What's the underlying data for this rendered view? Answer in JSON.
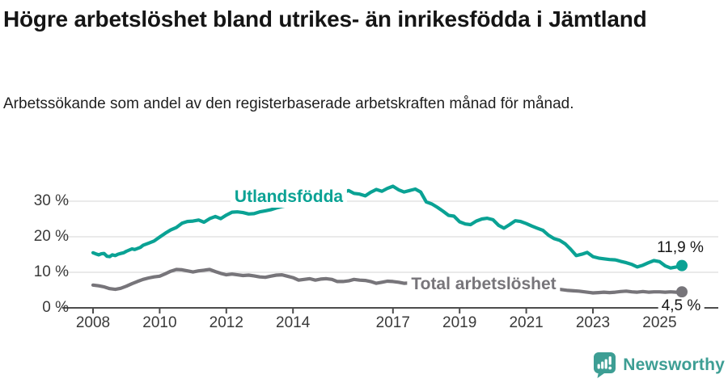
{
  "chart_data": {
    "type": "line",
    "title": "Högre arbetslöshet bland utrikes- än inrikesfödda i Jämtland",
    "subtitle": "Arbetssökande som andel av den registerbaserade arbetskraften månad för månad.",
    "xlim": [
      2008,
      2025.67
    ],
    "ylim": [
      0,
      35
    ],
    "grid": true,
    "legend_position": "inline-labels-on-lines",
    "x_ticks": {
      "years": [
        2008,
        2010,
        2012,
        2014,
        2017,
        2019,
        2021,
        2023,
        2025
      ],
      "labels": [
        "2008",
        "2010",
        "2012",
        "2014",
        "2017",
        "2019",
        "2021",
        "2023",
        "2025"
      ]
    },
    "y_ticks": {
      "values": [
        0,
        10,
        20,
        30
      ],
      "labels": [
        "0 %",
        "10 %",
        "20 %",
        "30 %"
      ]
    },
    "axis_color": "#4d4d4d",
    "gridline_color": "#dedede",
    "series": [
      {
        "name": "Utlandsfödda",
        "color": "#0aa294",
        "end_label": "11,9 %",
        "end_value": 11.9,
        "points": [
          [
            2008.0,
            15.5
          ],
          [
            2008.08,
            15.2
          ],
          [
            2008.17,
            14.9
          ],
          [
            2008.25,
            15.2
          ],
          [
            2008.33,
            15.3
          ],
          [
            2008.42,
            14.5
          ],
          [
            2008.5,
            14.4
          ],
          [
            2008.58,
            14.9
          ],
          [
            2008.67,
            14.7
          ],
          [
            2008.75,
            15.1
          ],
          [
            2008.83,
            15.3
          ],
          [
            2008.92,
            15.5
          ],
          [
            2009.0,
            15.9
          ],
          [
            2009.17,
            16.6
          ],
          [
            2009.25,
            16.4
          ],
          [
            2009.42,
            17.0
          ],
          [
            2009.5,
            17.6
          ],
          [
            2009.67,
            18.2
          ],
          [
            2009.83,
            18.8
          ],
          [
            2010.0,
            19.9
          ],
          [
            2010.17,
            21.0
          ],
          [
            2010.33,
            21.9
          ],
          [
            2010.5,
            22.6
          ],
          [
            2010.67,
            23.8
          ],
          [
            2010.83,
            24.3
          ],
          [
            2011.0,
            24.4
          ],
          [
            2011.17,
            24.7
          ],
          [
            2011.33,
            24.1
          ],
          [
            2011.5,
            25.1
          ],
          [
            2011.67,
            25.7
          ],
          [
            2011.83,
            25.1
          ],
          [
            2012.0,
            26.1
          ],
          [
            2012.17,
            26.9
          ],
          [
            2012.33,
            27.0
          ],
          [
            2012.5,
            26.8
          ],
          [
            2012.67,
            26.4
          ],
          [
            2012.83,
            26.5
          ],
          [
            2013.0,
            27.0
          ],
          [
            2013.17,
            27.3
          ],
          [
            2013.33,
            27.6
          ],
          [
            2013.5,
            28.1
          ],
          [
            2013.67,
            28.5
          ],
          [
            2013.83,
            28.8
          ],
          [
            2014.0,
            29.3
          ],
          [
            2014.17,
            29.7
          ],
          [
            2014.33,
            30.1
          ],
          [
            2014.5,
            30.5
          ],
          [
            2014.67,
            30.9
          ],
          [
            2014.83,
            31.2
          ],
          [
            2015.0,
            31.5
          ],
          [
            2015.17,
            31.9
          ],
          [
            2015.33,
            32.1
          ],
          [
            2015.5,
            32.4
          ],
          [
            2015.67,
            33.0
          ],
          [
            2015.83,
            32.2
          ],
          [
            2016.0,
            32.0
          ],
          [
            2016.17,
            31.5
          ],
          [
            2016.33,
            32.5
          ],
          [
            2016.5,
            33.3
          ],
          [
            2016.67,
            32.8
          ],
          [
            2016.83,
            33.6
          ],
          [
            2017.0,
            34.2
          ],
          [
            2017.17,
            33.2
          ],
          [
            2017.33,
            32.6
          ],
          [
            2017.5,
            33.0
          ],
          [
            2017.67,
            33.4
          ],
          [
            2017.83,
            32.6
          ],
          [
            2018.0,
            29.8
          ],
          [
            2018.17,
            29.2
          ],
          [
            2018.33,
            28.3
          ],
          [
            2018.5,
            27.2
          ],
          [
            2018.67,
            26.0
          ],
          [
            2018.83,
            25.8
          ],
          [
            2019.0,
            24.2
          ],
          [
            2019.17,
            23.6
          ],
          [
            2019.33,
            23.4
          ],
          [
            2019.5,
            24.4
          ],
          [
            2019.67,
            25.0
          ],
          [
            2019.83,
            25.2
          ],
          [
            2020.0,
            24.8
          ],
          [
            2020.17,
            23.2
          ],
          [
            2020.33,
            22.4
          ],
          [
            2020.5,
            23.4
          ],
          [
            2020.67,
            24.5
          ],
          [
            2020.83,
            24.3
          ],
          [
            2021.0,
            23.7
          ],
          [
            2021.17,
            23.0
          ],
          [
            2021.33,
            22.4
          ],
          [
            2021.5,
            21.8
          ],
          [
            2021.67,
            20.4
          ],
          [
            2021.83,
            19.5
          ],
          [
            2022.0,
            19.0
          ],
          [
            2022.17,
            18.0
          ],
          [
            2022.33,
            16.5
          ],
          [
            2022.5,
            14.7
          ],
          [
            2022.67,
            15.1
          ],
          [
            2022.83,
            15.6
          ],
          [
            2023.0,
            14.4
          ],
          [
            2023.17,
            14.0
          ],
          [
            2023.33,
            13.8
          ],
          [
            2023.5,
            13.6
          ],
          [
            2023.67,
            13.5
          ],
          [
            2023.83,
            13.1
          ],
          [
            2024.0,
            12.7
          ],
          [
            2024.17,
            12.2
          ],
          [
            2024.33,
            11.5
          ],
          [
            2024.5,
            12.0
          ],
          [
            2024.67,
            12.7
          ],
          [
            2024.83,
            13.3
          ],
          [
            2025.0,
            13.0
          ],
          [
            2025.17,
            11.8
          ],
          [
            2025.33,
            11.2
          ],
          [
            2025.5,
            11.5
          ],
          [
            2025.67,
            11.9
          ]
        ]
      },
      {
        "name": "Total arbetslöshet",
        "color": "#77757a",
        "end_label": "4,5 %",
        "end_value": 4.5,
        "points": [
          [
            2008.0,
            6.4
          ],
          [
            2008.17,
            6.2
          ],
          [
            2008.33,
            5.9
          ],
          [
            2008.5,
            5.4
          ],
          [
            2008.67,
            5.2
          ],
          [
            2008.83,
            5.5
          ],
          [
            2009.0,
            6.1
          ],
          [
            2009.17,
            6.8
          ],
          [
            2009.33,
            7.4
          ],
          [
            2009.5,
            8.0
          ],
          [
            2009.67,
            8.4
          ],
          [
            2009.83,
            8.7
          ],
          [
            2010.0,
            8.9
          ],
          [
            2010.17,
            9.6
          ],
          [
            2010.33,
            10.3
          ],
          [
            2010.5,
            10.8
          ],
          [
            2010.67,
            10.7
          ],
          [
            2010.83,
            10.4
          ],
          [
            2011.0,
            10.1
          ],
          [
            2011.17,
            10.4
          ],
          [
            2011.33,
            10.6
          ],
          [
            2011.5,
            10.8
          ],
          [
            2011.67,
            10.2
          ],
          [
            2011.83,
            9.7
          ],
          [
            2012.0,
            9.3
          ],
          [
            2012.17,
            9.5
          ],
          [
            2012.33,
            9.3
          ],
          [
            2012.5,
            9.1
          ],
          [
            2012.67,
            9.2
          ],
          [
            2012.83,
            9.0
          ],
          [
            2013.0,
            8.7
          ],
          [
            2013.17,
            8.6
          ],
          [
            2013.33,
            8.9
          ],
          [
            2013.5,
            9.2
          ],
          [
            2013.67,
            9.3
          ],
          [
            2013.83,
            8.9
          ],
          [
            2014.0,
            8.5
          ],
          [
            2014.17,
            7.8
          ],
          [
            2014.33,
            8.0
          ],
          [
            2014.5,
            8.2
          ],
          [
            2014.67,
            7.8
          ],
          [
            2014.83,
            8.1
          ],
          [
            2015.0,
            8.2
          ],
          [
            2015.17,
            8.0
          ],
          [
            2015.33,
            7.4
          ],
          [
            2015.5,
            7.4
          ],
          [
            2015.67,
            7.6
          ],
          [
            2015.83,
            8.0
          ],
          [
            2016.0,
            7.8
          ],
          [
            2016.17,
            7.7
          ],
          [
            2016.33,
            7.4
          ],
          [
            2016.5,
            6.9
          ],
          [
            2016.67,
            7.2
          ],
          [
            2016.83,
            7.5
          ],
          [
            2017.0,
            7.4
          ],
          [
            2017.17,
            7.2
          ],
          [
            2017.33,
            6.9
          ],
          [
            2017.5,
            7.0
          ],
          [
            2017.75,
            7.1
          ],
          [
            2018.0,
            6.9
          ],
          [
            2018.5,
            6.6
          ],
          [
            2019.0,
            6.4
          ],
          [
            2019.5,
            6.5
          ],
          [
            2020.0,
            6.6
          ],
          [
            2020.5,
            6.9
          ],
          [
            2021.0,
            6.4
          ],
          [
            2021.5,
            5.8
          ],
          [
            2022.0,
            5.2
          ],
          [
            2022.25,
            4.9
          ],
          [
            2022.42,
            4.8
          ],
          [
            2022.58,
            4.7
          ],
          [
            2022.75,
            4.5
          ],
          [
            2022.92,
            4.3
          ],
          [
            2023.0,
            4.2
          ],
          [
            2023.17,
            4.3
          ],
          [
            2023.33,
            4.4
          ],
          [
            2023.5,
            4.3
          ],
          [
            2023.67,
            4.4
          ],
          [
            2023.83,
            4.6
          ],
          [
            2024.0,
            4.7
          ],
          [
            2024.17,
            4.5
          ],
          [
            2024.33,
            4.4
          ],
          [
            2024.5,
            4.6
          ],
          [
            2024.67,
            4.4
          ],
          [
            2024.83,
            4.5
          ],
          [
            2025.0,
            4.5
          ],
          [
            2025.17,
            4.4
          ],
          [
            2025.33,
            4.5
          ],
          [
            2025.5,
            4.4
          ],
          [
            2025.67,
            4.5
          ]
        ]
      }
    ]
  },
  "footer": {
    "brand": "Newsworthy",
    "brand_color": "#3d9e94",
    "logo_icon": "bar-chart-speech-bubble-icon"
  }
}
